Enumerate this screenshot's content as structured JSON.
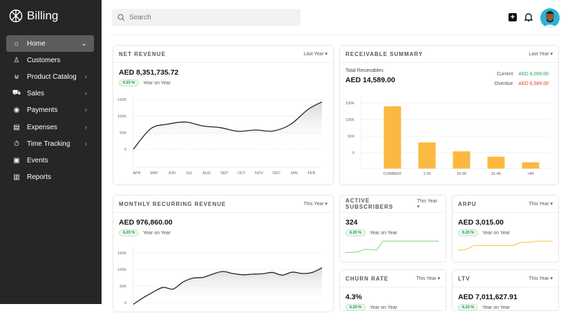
{
  "app": {
    "title": "Billing"
  },
  "sidebar": {
    "items": [
      {
        "label": "Home",
        "icon": "home-icon",
        "chevron": "down",
        "active": true
      },
      {
        "label": "Customers",
        "icon": "user-icon"
      },
      {
        "label": "Product Catalog",
        "icon": "basket-icon",
        "chevron": "right"
      },
      {
        "label": "Sales",
        "icon": "cart-icon",
        "chevron": "right"
      },
      {
        "label": "Payments",
        "icon": "payment-icon",
        "chevron": "right"
      },
      {
        "label": "Expenses",
        "icon": "receipt-icon",
        "chevron": "right"
      },
      {
        "label": "Time Tracking",
        "icon": "stopwatch-icon",
        "chevron": "right"
      },
      {
        "label": "Events",
        "icon": "calendar-icon"
      },
      {
        "label": "Reports",
        "icon": "bar-chart-icon"
      }
    ]
  },
  "header": {
    "search_placeholder": "Search"
  },
  "colors": {
    "sidebar": "#262626",
    "green": "#2e9e4f",
    "red": "#e0401f",
    "bar": "#fbb942",
    "spark_green": "#8fe08a",
    "spark_orange": "#fdc95f"
  },
  "net_revenue": {
    "title": "NET REVENUE",
    "period": "Last Year",
    "value": "AED 8,351,735.72",
    "badge": "6.23 %",
    "yoy": "Year on Year"
  },
  "receivable": {
    "title": "RECEIVABLE SUMMARY",
    "period": "Last Year",
    "total_label": "Total Recievables",
    "total": "AED 14,589.00",
    "current_label": "Current",
    "current_value": "AED 8,000.00",
    "overdue_label": "Overdue",
    "overdue_value": "AED 6,589.00"
  },
  "mrr": {
    "title": "MONTHLY RECURRING REVENUE",
    "period": "This Year",
    "value": "AED 976,860.00",
    "badge": "6.23 %",
    "yoy": "Year on Year"
  },
  "active_subscribers": {
    "title": "ACTIVE SUBSCRIBERS",
    "period": "This Year",
    "value": "324",
    "badge": "6.23 %",
    "yoy": "Year on Year"
  },
  "arpu": {
    "title": "ARPU",
    "period": "This Year",
    "value": "AED 3,015.00",
    "badge": "6.23 %",
    "yoy": "Year on Year"
  },
  "churn": {
    "title": "CHURN RATE",
    "period": "This Year",
    "value": "4.3%",
    "badge": "6.23 %",
    "yoy": "Year on Year"
  },
  "ltv": {
    "title": "LTV",
    "period": "This Year",
    "value": "AED 7,011,627.91",
    "badge": "6.23 %",
    "yoy": "Year on Year"
  },
  "chart_data": [
    {
      "type": "area",
      "id": "net",
      "yticks": [
        "0",
        "50K",
        "100K",
        "150K"
      ],
      "ylim": [
        0,
        150000
      ],
      "categories": [
        "APR",
        "MAY",
        "JUN",
        "JUL",
        "AUG",
        "SEP",
        "OCT",
        "NOV",
        "DEC",
        "JAN",
        "FEB"
      ],
      "x": [
        0,
        1,
        2,
        3,
        4,
        5,
        6,
        7,
        8,
        9,
        10,
        10.8
      ],
      "values": [
        0,
        62000,
        76000,
        82000,
        70000,
        65000,
        54000,
        58000,
        55000,
        75000,
        120000,
        143000
      ],
      "grid": true
    },
    {
      "type": "bar",
      "id": "recv",
      "yticks": [
        "0",
        "50K",
        "100K",
        "150K"
      ],
      "ylim": [
        -48000,
        150000
      ],
      "categories": [
        "CURRENT",
        "1-25",
        "16-30",
        "31-45",
        ">45"
      ],
      "values": [
        140000,
        31000,
        4000,
        -12000,
        -29000
      ],
      "grid": true
    },
    {
      "type": "area",
      "id": "mrr",
      "yticks": [
        "0",
        "50K",
        "100K",
        "150K"
      ],
      "ylim": [
        0,
        150000
      ],
      "x": [
        0,
        1,
        2,
        3,
        4,
        5,
        6,
        7,
        8,
        9,
        10,
        11,
        12,
        13,
        14,
        15,
        16,
        17,
        18,
        19
      ],
      "values": [
        -5000,
        15000,
        32000,
        46000,
        41000,
        62000,
        74000,
        76000,
        86000,
        94000,
        88000,
        84000,
        86000,
        87000,
        91000,
        83000,
        92000,
        88000,
        91000,
        105000
      ],
      "grid": true
    },
    {
      "type": "line",
      "id": "subs",
      "values": [
        10,
        10,
        13,
        22,
        22,
        19,
        55,
        55,
        55,
        55,
        55,
        55,
        55,
        55,
        55,
        55
      ]
    },
    {
      "type": "line",
      "id": "arpu",
      "values": [
        10,
        12,
        30,
        30,
        30,
        30,
        30,
        30,
        45,
        45,
        50,
        50,
        50
      ]
    }
  ]
}
